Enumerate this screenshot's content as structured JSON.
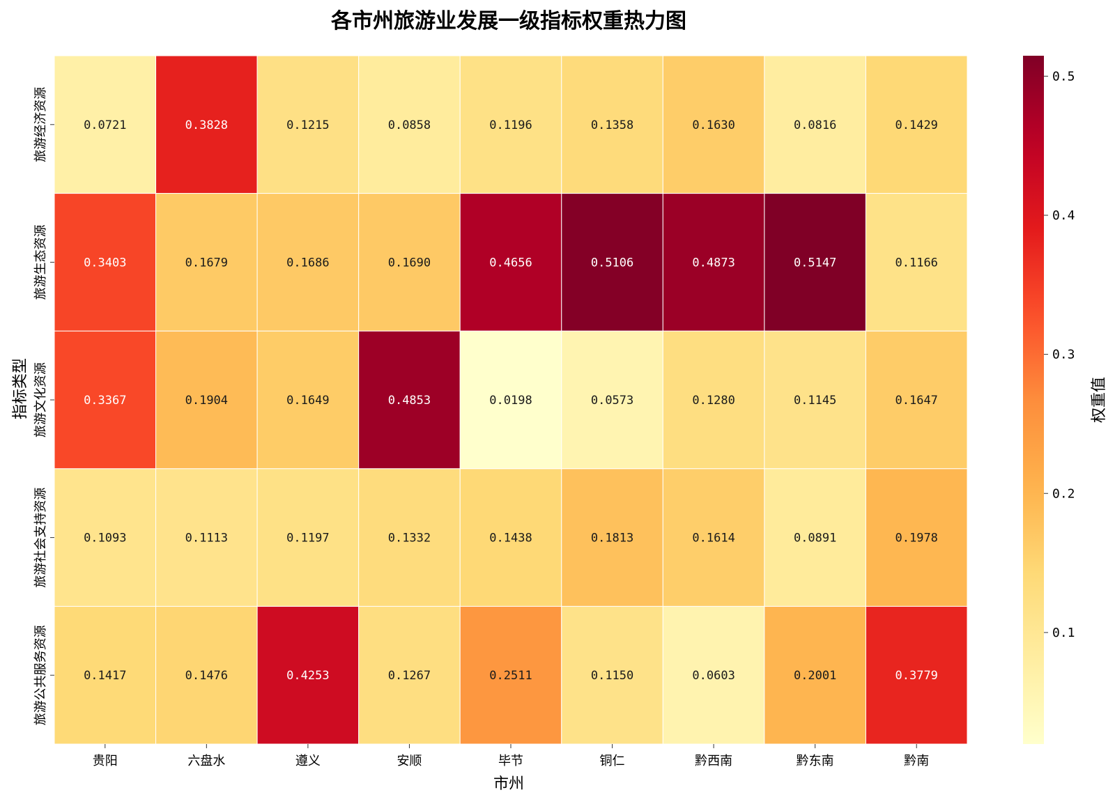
{
  "chart_data": {
    "type": "heatmap",
    "title": "各市州旅游业发展一级指标权重热力图",
    "xlabel": "市州",
    "ylabel": "指标类型",
    "x_categories": [
      "贵阳",
      "六盘水",
      "遵义",
      "安顺",
      "毕节",
      "铜仁",
      "黔西南",
      "黔东南",
      "黔南"
    ],
    "y_categories": [
      "旅游经济资源",
      "旅游生态资源",
      "旅游文化资源",
      "旅游社会支持资源",
      "旅游公共服务资源"
    ],
    "values": [
      [
        0.0721,
        0.3828,
        0.1215,
        0.0858,
        0.1196,
        0.1358,
        0.163,
        0.0816,
        0.1429
      ],
      [
        0.3403,
        0.1679,
        0.1686,
        0.169,
        0.4656,
        0.5106,
        0.4873,
        0.5147,
        0.1166
      ],
      [
        0.3367,
        0.1904,
        0.1649,
        0.4853,
        0.0198,
        0.0573,
        0.128,
        0.1145,
        0.1647
      ],
      [
        0.1093,
        0.1113,
        0.1197,
        0.1332,
        0.1438,
        0.1813,
        0.1614,
        0.0891,
        0.1978
      ],
      [
        0.1417,
        0.1476,
        0.4253,
        0.1267,
        0.2511,
        0.115,
        0.0603,
        0.2001,
        0.3779
      ]
    ],
    "colormap": "YlOrRd",
    "colorbar": {
      "label": "权重值",
      "range": [
        0.0198,
        0.5147
      ],
      "ticks": [
        0.1,
        0.2,
        0.3,
        0.4,
        0.5
      ],
      "tick_labels": [
        "0.1",
        "0.2",
        "0.3",
        "0.4",
        "0.5"
      ]
    },
    "value_format": "4 decimals",
    "grid": false
  }
}
